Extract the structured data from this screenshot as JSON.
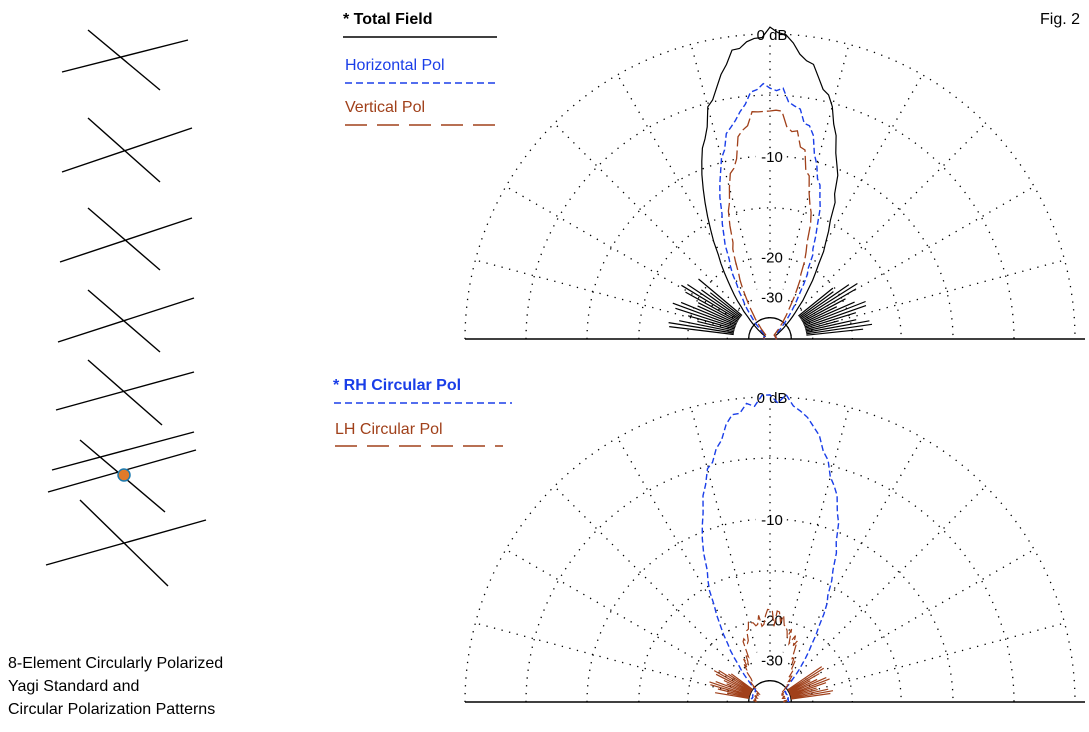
{
  "figure_label": "Fig. 2",
  "caption": {
    "line1": "8-Element Circularly Polarized",
    "line2": "Yagi Standard and",
    "line3": "Circular Polarization Patterns"
  },
  "colors": {
    "total": "#000000",
    "horizontal": "#1a3ee8",
    "vertical": "#a0401a",
    "rh": "#1a3ee8",
    "lh": "#a0401a",
    "feed_point": "#e07a2a"
  },
  "top_plot": {
    "legend": [
      {
        "label": "* Total Field",
        "style": "solid",
        "color": "#000000",
        "bold": true
      },
      {
        "label": "Horizontal Pol",
        "style": "dashed",
        "color": "#1a3ee8",
        "bold": false
      },
      {
        "label": "Vertical Pol",
        "style": "long-dash",
        "color": "#a0401a",
        "bold": false
      }
    ],
    "ring_labels": [
      "0 dB",
      "-10",
      "-20",
      "-30"
    ]
  },
  "bottom_plot": {
    "legend": [
      {
        "label": "* RH Circular Pol",
        "style": "dashed",
        "color": "#1a3ee8",
        "bold": true
      },
      {
        "label": "LH Circular Pol",
        "style": "long-dash",
        "color": "#a0401a",
        "bold": false
      }
    ],
    "ring_labels": [
      "0 dB",
      "-10",
      "-20",
      "-30"
    ]
  },
  "antenna": {
    "element_count": 8,
    "icon": "yagi-antenna-sketch"
  }
}
